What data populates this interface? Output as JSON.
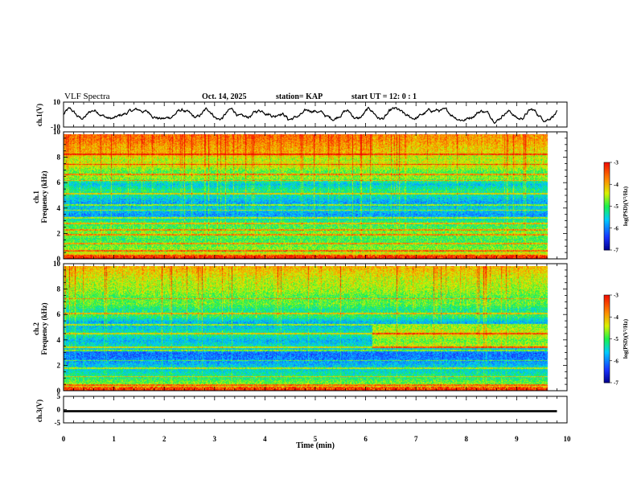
{
  "header": {
    "title": "VLF Spectra",
    "date": "Oct. 14, 2025",
    "station": "station= KAP",
    "start": "start  UT =   12: 0   : 1"
  },
  "chart_data": [
    {
      "type": "line",
      "name": "ch1-waveform",
      "ylabel": "ch.1(V)",
      "ylim": [
        -10,
        10
      ],
      "yticks": [
        {
          "v": 10,
          "label": "10"
        },
        {
          "v": -10,
          "label": "-10"
        }
      ],
      "x_range_min": [
        0,
        9.8
      ],
      "trace_amplitude_v": 6
    },
    {
      "type": "heatmap",
      "name": "ch1-spectrogram",
      "ylabel": "ch.1\nFrequency (kHz)",
      "ylim": [
        0,
        10
      ],
      "yticks": [
        "0",
        "2",
        "4",
        "6",
        "8",
        "10"
      ],
      "x_range_min": [
        0,
        9.8
      ],
      "colorbar": {
        "label": "log(PSD)(V²/Hz)",
        "range": [
          -7,
          -3
        ],
        "ticks": [
          "-3",
          "-4",
          "-5",
          "-6",
          "-7"
        ]
      },
      "band_profile": [
        {
          "f": 0.0,
          "v": -3.6
        },
        {
          "f": 0.5,
          "v": -4.5
        },
        {
          "f": 1.0,
          "v": -4.8
        },
        {
          "f": 1.5,
          "v": -5.0
        },
        {
          "f": 2.0,
          "v": -4.7
        },
        {
          "f": 2.5,
          "v": -4.9
        },
        {
          "f": 3.0,
          "v": -5.1
        },
        {
          "f": 3.5,
          "v": -5.9
        },
        {
          "f": 4.0,
          "v": -5.5
        },
        {
          "f": 4.5,
          "v": -5.8
        },
        {
          "f": 5.0,
          "v": -5.4
        },
        {
          "f": 5.5,
          "v": -5.1
        },
        {
          "f": 6.0,
          "v": -5.6
        },
        {
          "f": 6.5,
          "v": -4.6
        },
        {
          "f": 7.0,
          "v": -4.9
        },
        {
          "f": 7.5,
          "v": -4.3
        },
        {
          "f": 8.0,
          "v": -4.5
        },
        {
          "f": 8.5,
          "v": -4.0
        },
        {
          "f": 9.0,
          "v": -3.9
        },
        {
          "f": 9.5,
          "v": -3.7
        },
        {
          "f": 10.0,
          "v": -3.6
        }
      ],
      "lines_khz": [
        0.6,
        1.2,
        1.9,
        2.3,
        2.8,
        3.3,
        3.9,
        4.3,
        5.2,
        6.3,
        6.8,
        7.6,
        8.4
      ],
      "step_time_min": 6.25
    },
    {
      "type": "heatmap",
      "name": "ch2-spectrogram",
      "ylabel": "ch.2\nFrequency (kHz)",
      "ylim": [
        0,
        10
      ],
      "yticks": [
        "0",
        "2",
        "4",
        "6",
        "8",
        "10"
      ],
      "x_range_min": [
        0,
        9.8
      ],
      "colorbar": {
        "label": "log(PSD)(V²/Hz)",
        "range": [
          -7,
          -3
        ],
        "ticks": [
          "-3",
          "-4",
          "-5",
          "-6",
          "-7"
        ]
      },
      "band_profile": [
        {
          "f": 0.0,
          "v": -3.7
        },
        {
          "f": 0.5,
          "v": -4.7
        },
        {
          "f": 1.0,
          "v": -5.1
        },
        {
          "f": 1.5,
          "v": -5.4
        },
        {
          "f": 2.0,
          "v": -5.6
        },
        {
          "f": 2.5,
          "v": -6.0
        },
        {
          "f": 3.0,
          "v": -6.1
        },
        {
          "f": 3.5,
          "v": -5.3
        },
        {
          "f": 4.0,
          "v": -5.7
        },
        {
          "f": 4.5,
          "v": -5.2
        },
        {
          "f": 5.0,
          "v": -5.5
        },
        {
          "f": 5.5,
          "v": -5.7
        },
        {
          "f": 6.0,
          "v": -5.0
        },
        {
          "f": 6.5,
          "v": -5.2
        },
        {
          "f": 7.0,
          "v": -4.8
        },
        {
          "f": 7.5,
          "v": -4.9
        },
        {
          "f": 8.0,
          "v": -4.6
        },
        {
          "f": 8.5,
          "v": -4.5
        },
        {
          "f": 9.0,
          "v": -4.4
        },
        {
          "f": 9.5,
          "v": -4.2
        },
        {
          "f": 10.0,
          "v": -4.0
        }
      ],
      "lines_khz": [
        0.4,
        1.1,
        1.8,
        2.4,
        3.2,
        3.5,
        4.6,
        5.3,
        6.2,
        7.4
      ],
      "step_time_min": 6.25
    },
    {
      "type": "line",
      "name": "ch3-signal",
      "ylabel": "ch.3(V)",
      "ylim": [
        -5,
        5
      ],
      "yticks": [
        {
          "v": 5,
          "label": "5"
        },
        {
          "v": 0,
          "label": "0"
        },
        {
          "v": -5,
          "label": "-5"
        }
      ],
      "x_range_min": [
        0,
        9.8
      ],
      "band_v": [
        -1.0,
        -0.2
      ]
    }
  ],
  "xaxis": {
    "label": "Time  (min)",
    "ticks": [
      "0",
      "1",
      "2",
      "3",
      "4",
      "5",
      "6",
      "7",
      "8",
      "9",
      "10"
    ]
  }
}
